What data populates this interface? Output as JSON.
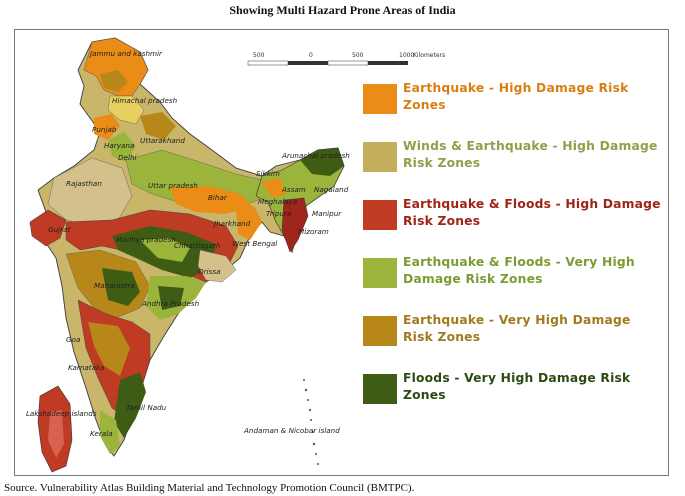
{
  "title": "Showing Multi Hazard Prone Areas of India",
  "source": "Source. Vulnerability Atlas Building Material and Technology Promotion Council (BMTPC).",
  "scale": {
    "ticks": [
      "500",
      "0",
      "500",
      "1000"
    ],
    "unit": "Kilometers"
  },
  "legend": [
    {
      "label": "Earthquake - High Damage Risk Zones",
      "color": "#ea8c16",
      "text_color": "#d97f12"
    },
    {
      "label": "Winds & Earthquake - High Damage Risk Zones",
      "color": "#c2ae5c",
      "text_color": "#8ea14a"
    },
    {
      "label": "Earthquake & Floods - High Damage Risk Zones",
      "color": "#bf3b23",
      "text_color": "#9e2417"
    },
    {
      "label": "Earthquake & Floods - Very High Damage Risk Zones",
      "color": "#9bb53c",
      "text_color": "#7b9b33"
    },
    {
      "label": "Earthquake - Very High Damage Risk Zones",
      "color": "#b78719",
      "text_color": "#a07b1e"
    },
    {
      "label": "Floods - Very High Damage Risk Zones",
      "color": "#3f5c15",
      "text_color": "#2c4a12"
    }
  ],
  "places": {
    "jk": "Jammu and kashmir",
    "hp": "Himachal pradesh",
    "punjab": "Punjab",
    "haryana": "Haryana",
    "uttarakhand": "Uttarakhand",
    "delhi": "Delhi",
    "rajasthan": "Rajasthan",
    "up": "Uttar pradesh",
    "bihar": "Bihar",
    "sikkim": "Sikkim",
    "arunachal": "Arunachal pradesh",
    "assam": "Assam",
    "nagaland": "Nagaland",
    "meghalaya": "Meghalaya",
    "manipur": "Manipur",
    "tripura": "Tripura",
    "mizoram": "Mizoram",
    "gujarat": "Gujrat",
    "mp": "Madhya pradesh",
    "jharkhand": "Jharkhand",
    "wb": "West Bengal",
    "chhattisgarh": "Chhattisgarh",
    "orissa": "Orissa",
    "maharastra": "Maharastra",
    "ap": "Andhra Pradesh",
    "goa": "Goa",
    "karnataka": "Karnataka",
    "tn": "Tamil Nadu",
    "kerala": "Kerala",
    "lakshadweep": "Lakshadeep islands",
    "andaman": "Andaman & Nicobar island"
  }
}
